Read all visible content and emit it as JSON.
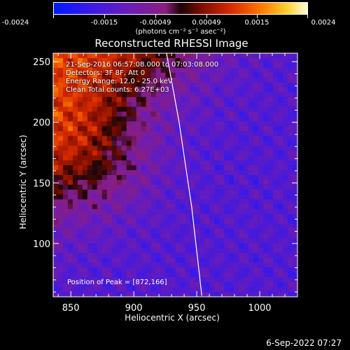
{
  "colorbar": {
    "tick_labels": [
      "-0.0024",
      "-0.0015",
      "-0.00049",
      "0.00049",
      "0.0015",
      "0.0024"
    ],
    "unit_label": "(photons cm⁻² s⁻¹ asec⁻²)"
  },
  "chart_data": {
    "type": "heatmap",
    "title": "Reconstructed RHESSI Image",
    "xlabel": "Heliocentric X (arcsec)",
    "ylabel": "Heliocentric Y (arcsec)",
    "xlim": [
      836,
      1030
    ],
    "ylim": [
      56,
      257
    ],
    "x_ticks": [
      850,
      900,
      950,
      1000
    ],
    "y_ticks": [
      100,
      150,
      200,
      250
    ],
    "colorbar_range": [
      -0.0024,
      0.0024
    ],
    "peak_position": [
      872,
      166
    ],
    "limb_line": {
      "x": [
        926,
        936,
        946,
        954
      ],
      "y": [
        257,
        200,
        130,
        57
      ]
    },
    "annotations": [
      "21-Sep-2016 06:57:08.000 to 07:03:08.000",
      "Detectors: 3F 8F, Att 0",
      "Energy Range: 12.0 - 25.0 keV",
      "Clean     Total counts: 6.27E+03"
    ],
    "peak_label": "Position of Peak = [872,166]"
  },
  "footer": {
    "date": "6-Sep-2022 07:27"
  }
}
